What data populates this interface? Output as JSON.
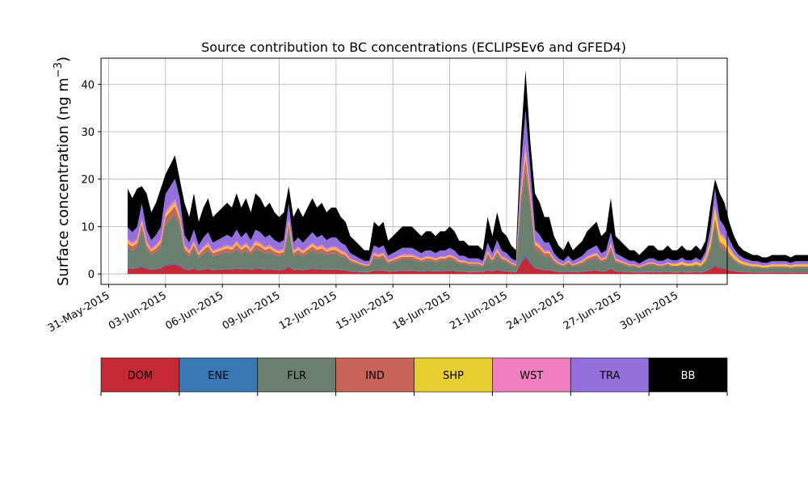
{
  "chart_data": {
    "type": "area",
    "title": "Source contribution to BC concentrations (ECLIPSEv6 and GFED4)",
    "ylabel": "Surface concentration (ng m",
    "ylabel_exponent": "−3",
    "ylabel_suffix": ")",
    "xlabel": "",
    "grid": true,
    "ylim": [
      -2.2,
      45.5
    ],
    "xlim_days_labels": [
      "31-May-2015",
      "30-Jun-2015"
    ],
    "y_ticks": [
      0,
      10,
      20,
      30,
      40
    ],
    "x_ticks": [
      "31-May-2015",
      "03-Jun-2015",
      "06-Jun-2015",
      "09-Jun-2015",
      "12-Jun-2015",
      "15-Jun-2015",
      "18-Jun-2015",
      "21-Jun-2015",
      "24-Jun-2015",
      "27-Jun-2015",
      "30-Jun-2015"
    ],
    "x_start": "01-Jun-2015",
    "x_step_hours": 6,
    "total_envelope": [
      18,
      16,
      18,
      18.5,
      17,
      13,
      15,
      18,
      21,
      23,
      25,
      20,
      15,
      12,
      17,
      11,
      14,
      16,
      12,
      13,
      14,
      15,
      14,
      17,
      14,
      16,
      13,
      17,
      16,
      14,
      15,
      13,
      12,
      13,
      18.5,
      12,
      14,
      12,
      14,
      16,
      14,
      15,
      13,
      14,
      14,
      12,
      11,
      8,
      7,
      6,
      5,
      5,
      11,
      10,
      11,
      7,
      8,
      9,
      10,
      10,
      10,
      9,
      8,
      9,
      9,
      8,
      9,
      9,
      10,
      9,
      7,
      7,
      6,
      6,
      6,
      5,
      12,
      8,
      13,
      9,
      8,
      6,
      5,
      28,
      43,
      28,
      17,
      15,
      12,
      12,
      8,
      6,
      5,
      7,
      5,
      6,
      7,
      9,
      10,
      11,
      8,
      9,
      16,
      8,
      7,
      6,
      5,
      5,
      4,
      5,
      6,
      6,
      5,
      5,
      6,
      5,
      5,
      6,
      5,
      5,
      6,
      5,
      7,
      14,
      20,
      17,
      15,
      11,
      8,
      6,
      5,
      4.5,
      4,
      4,
      3.5,
      3.5,
      4,
      4,
      4,
      4,
      3.5,
      4,
      4,
      4,
      4,
      4,
      4.5,
      4.5,
      4.5,
      4.5,
      5,
      5,
      5,
      5,
      5,
      5.5,
      5.5,
      5.5,
      6,
      6,
      6.5,
      7,
      7,
      7.5,
      8,
      9.5,
      12.5,
      10,
      7,
      8,
      9,
      9,
      8,
      9,
      9,
      8,
      10,
      9,
      10,
      11,
      11,
      10,
      10,
      10,
      10,
      9,
      8,
      7,
      7,
      8,
      8,
      8,
      8,
      9,
      9,
      10,
      11,
      13,
      14,
      15.5,
      16.5,
      16,
      15,
      14,
      15,
      13,
      16,
      14,
      13,
      15,
      13,
      16,
      12,
      14,
      13,
      12,
      12,
      11,
      11,
      10,
      9,
      9,
      9,
      8,
      9,
      8,
      8,
      9,
      7,
      8,
      8,
      7,
      7,
      7,
      7,
      7,
      7,
      6,
      6,
      6,
      7,
      6,
      6,
      5,
      5,
      5,
      5,
      6,
      6,
      6,
      5,
      5,
      6,
      5,
      6
    ],
    "series": [
      {
        "name": "DOM",
        "color": "#c42a36"
      },
      {
        "name": "ENE",
        "color": "#3a78b5"
      },
      {
        "name": "FLR",
        "color": "#6b7f6e"
      },
      {
        "name": "IND",
        "color": "#c9645a"
      },
      {
        "name": "SHP",
        "color": "#e6cf2e"
      },
      {
        "name": "WST",
        "color": "#f07fbf"
      },
      {
        "name": "TRA",
        "color": "#9470dc"
      },
      {
        "name": "BB",
        "color": "#000000"
      }
    ]
  }
}
